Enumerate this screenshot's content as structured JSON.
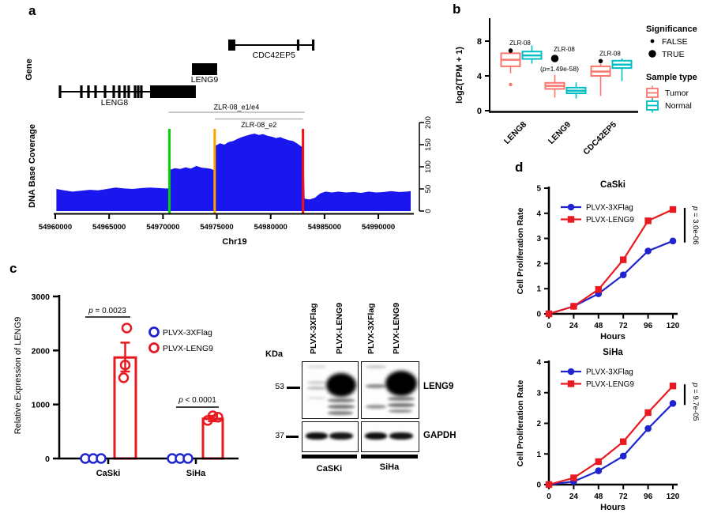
{
  "figure": {
    "panel_labels": {
      "a": "a",
      "b": "b",
      "c": "c",
      "d": "d"
    }
  },
  "chart_data": [
    {
      "panel": "a",
      "type": "area",
      "name": "dna-base-coverage-track",
      "gene_axis_label": "Gene",
      "ylabel": "DNA Base Coverage",
      "xlabel": "Chr19",
      "coverage_color": "#1a17ee",
      "xlim": [
        54959800,
        54993200
      ],
      "xticks": [
        54960000,
        54965000,
        54970000,
        54975000,
        54980000,
        54985000,
        54990000
      ],
      "yticks": [
        0,
        50,
        100,
        150,
        200
      ],
      "ylim": [
        0,
        200
      ],
      "genes": [
        {
          "name": "LENG8",
          "row": "bottom",
          "label_x": 54965500,
          "line": [
            54960370,
            54968800
          ],
          "exons": [
            54960440,
            54962420,
            54963080,
            54963740,
            54964620,
            54965430,
            54965940,
            54966450,
            54966820,
            54967410,
            54967700,
            54967990
          ],
          "box": [
            54968800,
            54973050
          ]
        },
        {
          "name": "LENG9",
          "row": "middle",
          "label_x": 54973860,
          "box": [
            54972690,
            54975030
          ]
        },
        {
          "name": "CDC42EP5",
          "row": "top",
          "label_x": 54980300,
          "box": [
            54976060,
            54976720
          ],
          "line": [
            54976720,
            54984050
          ],
          "exons": [
            54982550,
            54983950
          ]
        }
      ],
      "vlines": [
        {
          "pos": 54970600,
          "color": "#08d008"
        },
        {
          "pos": 54974800,
          "color": "#ffa200"
        },
        {
          "pos": 54983000,
          "color": "#f31111"
        }
      ],
      "brackets": [
        {
          "label": "ZLR-08_e1/e4",
          "from": 54970500,
          "to": 54983150,
          "label_side": "above"
        },
        {
          "label": "ZLR-08_e2",
          "from": 54974800,
          "to": 54983000,
          "label_side": "below"
        }
      ],
      "coverage_profile": [
        [
          54960100,
          50
        ],
        [
          54960800,
          47
        ],
        [
          54961600,
          44
        ],
        [
          54962400,
          46
        ],
        [
          54963200,
          48
        ],
        [
          54964000,
          47
        ],
        [
          54964800,
          50
        ],
        [
          54965600,
          53
        ],
        [
          54966400,
          51
        ],
        [
          54967200,
          50
        ],
        [
          54968000,
          52
        ],
        [
          54968800,
          53
        ],
        [
          54969600,
          52
        ],
        [
          54970200,
          51
        ],
        [
          54970550,
          51
        ],
        [
          54970650,
          93
        ],
        [
          54971100,
          97
        ],
        [
          54971600,
          95
        ],
        [
          54972100,
          99
        ],
        [
          54972600,
          96
        ],
        [
          54973100,
          102
        ],
        [
          54973600,
          98
        ],
        [
          54974100,
          97
        ],
        [
          54974500,
          95
        ],
        [
          54974750,
          92
        ],
        [
          54974900,
          148
        ],
        [
          54975300,
          153
        ],
        [
          54975700,
          150
        ],
        [
          54976100,
          156
        ],
        [
          54976500,
          158
        ],
        [
          54976900,
          163
        ],
        [
          54977300,
          167
        ],
        [
          54977700,
          170
        ],
        [
          54978100,
          173
        ],
        [
          54978500,
          175
        ],
        [
          54978900,
          172
        ],
        [
          54979300,
          174
        ],
        [
          54979700,
          170
        ],
        [
          54980100,
          168
        ],
        [
          54980500,
          165
        ],
        [
          54980900,
          167
        ],
        [
          54981300,
          163
        ],
        [
          54981700,
          160
        ],
        [
          54982100,
          158
        ],
        [
          54982500,
          152
        ],
        [
          54982900,
          145
        ],
        [
          54983050,
          140
        ],
        [
          54983150,
          28
        ],
        [
          54983600,
          26
        ],
        [
          54984100,
          30
        ],
        [
          54984600,
          40
        ],
        [
          54985100,
          44
        ],
        [
          54985700,
          42
        ],
        [
          54986300,
          44
        ],
        [
          54987000,
          42
        ],
        [
          54987700,
          43
        ],
        [
          54988400,
          41
        ],
        [
          54989100,
          44
        ],
        [
          54989800,
          42
        ],
        [
          54990500,
          43
        ],
        [
          54991200,
          45
        ],
        [
          54991900,
          43
        ],
        [
          54992600,
          44
        ],
        [
          54993000,
          45
        ]
      ]
    },
    {
      "panel": "b",
      "type": "boxplot",
      "ylabel": "log2(TPM + 1)",
      "yticks": [
        0,
        4,
        8
      ],
      "ylim": [
        0,
        9
      ],
      "categories": [
        "LENG8",
        "LENG9",
        "CDC42EP5"
      ],
      "series": [
        {
          "name": "Tumor",
          "color": "#f8766d",
          "boxes": [
            {
              "whislo": 4.3,
              "q1": 5.1,
              "med": 5.85,
              "q3": 6.6,
              "whishi": 7.2,
              "outliers": [
                3.0
              ]
            },
            {
              "whislo": 1.5,
              "q1": 2.5,
              "med": 2.85,
              "q3": 3.2,
              "whishi": 4.1,
              "outliers": []
            },
            {
              "whislo": 1.7,
              "q1": 4.0,
              "med": 4.5,
              "q3": 5.1,
              "whishi": 5.4,
              "outliers": []
            }
          ]
        },
        {
          "name": "Normal",
          "color": "#00bfc4",
          "boxes": [
            {
              "whislo": 5.4,
              "q1": 5.95,
              "med": 6.35,
              "q3": 6.8,
              "whishi": 7.5,
              "outliers": []
            },
            {
              "whislo": 1.4,
              "q1": 2.0,
              "med": 2.3,
              "q3": 2.65,
              "whishi": 3.25,
              "outliers": []
            },
            {
              "whislo": 3.4,
              "q1": 4.9,
              "med": 5.3,
              "q3": 5.75,
              "whishi": 6.0,
              "outliers": []
            }
          ]
        }
      ],
      "sig_points": [
        {
          "category": "LENG8",
          "value": 6.9,
          "significant": false,
          "label": "ZLR-08",
          "sublabel": ""
        },
        {
          "category": "LENG9",
          "value": 6.0,
          "significant": true,
          "label": "ZLR-08",
          "sublabel": "(p=1.49e-58)"
        },
        {
          "category": "CDC42EP5",
          "value": 5.7,
          "significant": false,
          "label": "ZLR-08",
          "sublabel": ""
        }
      ],
      "legend": {
        "significance_title": "Significance",
        "items": [
          {
            "label": "FALSE",
            "size": "small"
          },
          {
            "label": "TRUE",
            "size": "large"
          }
        ],
        "sample_title": "Sample type",
        "samples": [
          {
            "label": "Tumor",
            "color": "#f8766d"
          },
          {
            "label": "Normal",
            "color": "#00bfc4"
          }
        ]
      }
    },
    {
      "panel": "c",
      "type": "bar",
      "ylabel": "Relative Expression of LENG9",
      "yticks": [
        0,
        1000,
        2000,
        3000
      ],
      "ylim": [
        0,
        3000
      ],
      "categories": [
        "CaSki",
        "SiHa"
      ],
      "series": [
        {
          "name": "PLVX-3XFlag",
          "color": "#1e25cd",
          "marker": "open-circle",
          "values": [
            5,
            5
          ],
          "points": [
            [
              5,
              5,
              5
            ],
            [
              5,
              5,
              5
            ]
          ]
        },
        {
          "name": "PLVX-LENG9",
          "color": "#e8191f",
          "marker": "open-circle",
          "values": [
            1870,
            735
          ],
          "error_low": [
            1610,
            690
          ],
          "error_high": [
            2145,
            790
          ],
          "points": [
            [
              2415,
              1730,
              1495
            ],
            [
              705,
              790,
              765
            ]
          ]
        }
      ],
      "pvalues": [
        {
          "category": "CaSki",
          "text": "p = 0.0023"
        },
        {
          "category": "SiHa",
          "text": "p < 0.0001"
        }
      ]
    },
    {
      "panel": "c_blot",
      "type": "western-blot",
      "kda_label": "KDa",
      "lane_labels": [
        "PLVX-3XFlag",
        "PLVX-LENG9",
        "PLVX-3XFlag",
        "PLVX-LENG9"
      ],
      "markers": [
        {
          "kda": "53",
          "target": "LENG9"
        },
        {
          "kda": "37",
          "target": "GAPDH"
        }
      ],
      "group_labels": [
        "CaSKi",
        "SiHa"
      ]
    },
    {
      "panel": "d",
      "type": "line",
      "charts": [
        {
          "title": "CaSki",
          "xlabel": "Hours",
          "ylabel": "Cell Proliferation Rate",
          "x": [
            0,
            24,
            48,
            72,
            96,
            120
          ],
          "yticks": [
            0,
            1,
            2,
            3,
            4,
            5
          ],
          "ylim": [
            0,
            5
          ],
          "series": [
            {
              "name": "PLVX-3XFlag",
              "color": "#1e25cd",
              "marker": "circle",
              "values": [
                0,
                0.3,
                0.8,
                1.55,
                2.5,
                2.9
              ]
            },
            {
              "name": "PLVX-LENG9",
              "color": "#e8191f",
              "marker": "square",
              "values": [
                0,
                0.3,
                0.97,
                2.15,
                3.7,
                4.15
              ]
            }
          ],
          "pvalue": "p = 3.0e-06"
        },
        {
          "title": "SiHa",
          "xlabel": "Hours",
          "ylabel": "Cell Proliferation Rate",
          "x": [
            0,
            24,
            48,
            72,
            96,
            120
          ],
          "yticks": [
            0,
            1,
            2,
            3,
            4
          ],
          "ylim": [
            0,
            4
          ],
          "series": [
            {
              "name": "PLVX-3XFlag",
              "color": "#1e25cd",
              "marker": "circle",
              "values": [
                0,
                0.1,
                0.45,
                0.93,
                1.83,
                2.65
              ]
            },
            {
              "name": "PLVX-LENG9",
              "color": "#e8191f",
              "marker": "square",
              "values": [
                0,
                0.22,
                0.75,
                1.4,
                2.35,
                3.22
              ]
            }
          ],
          "pvalue": "p = 9.7e-05"
        }
      ]
    }
  ]
}
